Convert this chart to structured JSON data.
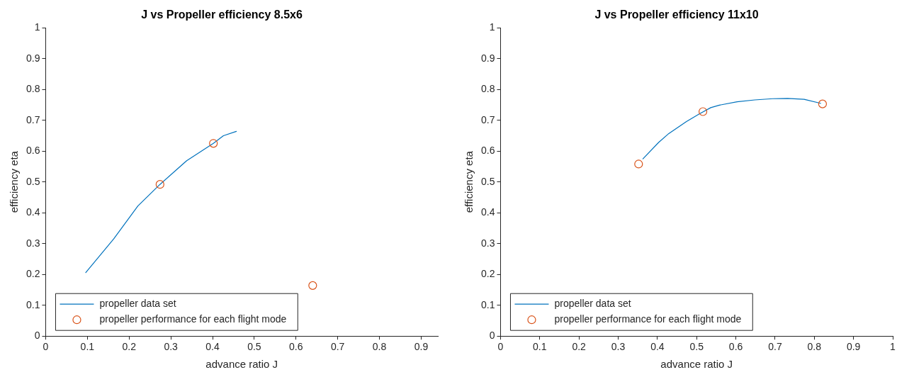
{
  "chart_data": [
    {
      "type": "line",
      "title": "J vs Propeller efficiency 8.5x6",
      "xlabel": "advance ratio J",
      "ylabel": "efficiency eta",
      "xlim": [
        0,
        0.94
      ],
      "xticks": [
        0,
        0.1,
        0.2,
        0.3,
        0.4,
        0.5,
        0.6,
        0.7,
        0.8,
        0.9
      ],
      "ylim": [
        0,
        1
      ],
      "yticks": [
        0,
        0.1,
        0.2,
        0.3,
        0.4,
        0.5,
        0.6,
        0.7,
        0.8,
        0.9,
        1
      ],
      "grid": false,
      "legend": "bottom left",
      "series": [
        {
          "name": "propeller data set",
          "type": "line",
          "color": "#0072bd",
          "marker": "none",
          "line_style": "solid",
          "x": [
            0.096,
            0.163,
            0.221,
            0.274,
            0.338,
            0.402,
            0.426,
            0.457
          ],
          "values": [
            0.206,
            0.315,
            0.422,
            0.492,
            0.569,
            0.625,
            0.65,
            0.664
          ]
        },
        {
          "name": "propeller performance for each flight mode",
          "type": "scatter",
          "color": "#d95319",
          "marker": "circle",
          "x": [
            0.274,
            0.402,
            0.64
          ],
          "values": [
            0.492,
            0.625,
            0.164
          ]
        }
      ]
    },
    {
      "type": "line",
      "title": "J vs Propeller efficiency 11x10",
      "xlabel": "advance ratio J",
      "ylabel": "efficiency eta",
      "xlim": [
        0,
        1
      ],
      "xticks": [
        0,
        0.1,
        0.2,
        0.3,
        0.4,
        0.5,
        0.6,
        0.7,
        0.8,
        0.9,
        1
      ],
      "ylim": [
        0,
        1
      ],
      "yticks": [
        0,
        0.1,
        0.2,
        0.3,
        0.4,
        0.5,
        0.6,
        0.7,
        0.8,
        0.9,
        1
      ],
      "grid": false,
      "legend": "bottom left",
      "series": [
        {
          "name": "propeller data set",
          "type": "line",
          "color": "#0072bd",
          "marker": "none",
          "line_style": "solid",
          "x": [
            0.363,
            0.403,
            0.429,
            0.474,
            0.506,
            0.536,
            0.558,
            0.603,
            0.648,
            0.694,
            0.732,
            0.774,
            0.816
          ],
          "values": [
            0.575,
            0.628,
            0.657,
            0.696,
            0.72,
            0.741,
            0.749,
            0.76,
            0.766,
            0.77,
            0.771,
            0.768,
            0.755
          ]
        },
        {
          "name": "propeller performance for each flight mode",
          "type": "scatter",
          "color": "#d95319",
          "marker": "circle",
          "x": [
            0.352,
            0.516,
            0.821
          ],
          "values": [
            0.558,
            0.728,
            0.753
          ]
        }
      ]
    }
  ]
}
